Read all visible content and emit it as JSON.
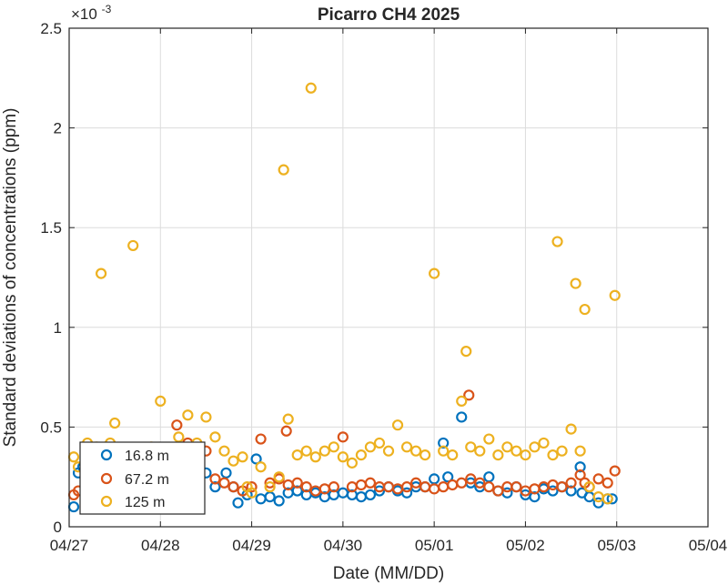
{
  "chart_data": {
    "type": "scatter",
    "title": "Picarro CH4 2025",
    "xlabel": "Date (MM/DD)",
    "ylabel": "Standard deviations of concentrations (ppm)",
    "y_exponent_label": "×10",
    "y_exponent_power": "-3",
    "x_ticks": [
      "04/27",
      "04/28",
      "04/29",
      "04/30",
      "05/01",
      "05/02",
      "05/03",
      "05/04"
    ],
    "x_tick_values": [
      0,
      1,
      2,
      3,
      4,
      5,
      6,
      7
    ],
    "x_value_unit": "days since 04/27",
    "y_ticks": [
      "0",
      "0.5",
      "1",
      "1.5",
      "2",
      "2.5"
    ],
    "y_tick_values": [
      0,
      0.5,
      1,
      1.5,
      2,
      2.5
    ],
    "xlim": [
      0,
      7
    ],
    "ylim": [
      0,
      2.5
    ],
    "grid": true,
    "legend_position": "bottom-left",
    "series": [
      {
        "name": "16.8 m",
        "color": "#0072BD",
        "x": [
          0.05,
          0.1,
          0.15,
          0.2,
          0.3,
          0.4,
          0.5,
          0.6,
          0.75,
          0.85,
          0.95,
          1.05,
          1.2,
          1.3,
          1.4,
          1.5,
          1.6,
          1.72,
          1.8,
          1.85,
          1.95,
          2.05,
          2.1,
          2.2,
          2.3,
          2.4,
          2.5,
          2.6,
          2.7,
          2.8,
          2.9,
          3.0,
          3.1,
          3.2,
          3.3,
          3.4,
          3.5,
          3.6,
          3.7,
          3.8,
          3.9,
          4.0,
          4.1,
          4.15,
          4.3,
          4.4,
          4.5,
          4.6,
          4.7,
          4.8,
          4.9,
          5.0,
          5.1,
          5.2,
          5.3,
          5.4,
          5.5,
          5.6,
          5.62,
          5.7,
          5.8,
          5.9,
          5.95
        ],
        "y": [
          0.1,
          0.27,
          0.3,
          0.28,
          0.25,
          0.22,
          0.24,
          0.3,
          0.26,
          0.28,
          0.3,
          0.25,
          0.22,
          0.24,
          0.3,
          0.27,
          0.2,
          0.27,
          0.2,
          0.12,
          0.16,
          0.34,
          0.14,
          0.15,
          0.13,
          0.17,
          0.18,
          0.16,
          0.17,
          0.15,
          0.16,
          0.17,
          0.16,
          0.15,
          0.16,
          0.18,
          0.2,
          0.18,
          0.17,
          0.2,
          0.2,
          0.24,
          0.42,
          0.25,
          0.55,
          0.22,
          0.2,
          0.25,
          0.18,
          0.17,
          0.2,
          0.16,
          0.15,
          0.19,
          0.18,
          0.2,
          0.18,
          0.3,
          0.17,
          0.15,
          0.12,
          0.14,
          0.14
        ]
      },
      {
        "name": "67.2 m",
        "color": "#D95319",
        "x": [
          0.05,
          0.1,
          0.2,
          0.3,
          0.4,
          0.5,
          0.6,
          0.7,
          0.8,
          0.9,
          1.0,
          1.1,
          1.18,
          1.3,
          1.4,
          1.5,
          1.6,
          1.7,
          1.8,
          1.9,
          2.0,
          2.1,
          2.2,
          2.3,
          2.38,
          2.4,
          2.5,
          2.6,
          2.7,
          2.8,
          2.9,
          3.0,
          3.1,
          3.2,
          3.3,
          3.4,
          3.5,
          3.6,
          3.7,
          3.8,
          3.9,
          4.0,
          4.1,
          4.2,
          4.3,
          4.38,
          4.4,
          4.5,
          4.6,
          4.7,
          4.8,
          4.9,
          5.0,
          5.1,
          5.2,
          5.3,
          5.4,
          5.5,
          5.6,
          5.65,
          5.7,
          5.8,
          5.9,
          5.98
        ],
        "y": [
          0.16,
          0.18,
          0.22,
          0.2,
          0.24,
          0.22,
          0.2,
          0.26,
          0.25,
          0.24,
          0.28,
          0.3,
          0.51,
          0.42,
          0.3,
          0.38,
          0.24,
          0.22,
          0.2,
          0.18,
          0.2,
          0.44,
          0.22,
          0.24,
          0.48,
          0.21,
          0.22,
          0.2,
          0.18,
          0.19,
          0.2,
          0.45,
          0.2,
          0.21,
          0.22,
          0.2,
          0.2,
          0.19,
          0.2,
          0.22,
          0.2,
          0.19,
          0.2,
          0.21,
          0.22,
          0.66,
          0.24,
          0.22,
          0.2,
          0.18,
          0.2,
          0.2,
          0.18,
          0.19,
          0.2,
          0.21,
          0.2,
          0.22,
          0.26,
          0.22,
          0.2,
          0.24,
          0.22,
          0.28
        ]
      },
      {
        "name": "125 m",
        "color": "#EDB120",
        "x": [
          0.05,
          0.1,
          0.2,
          0.3,
          0.35,
          0.45,
          0.5,
          0.6,
          0.7,
          0.8,
          0.9,
          1.0,
          1.1,
          1.2,
          1.3,
          1.4,
          1.5,
          1.6,
          1.7,
          1.8,
          1.9,
          1.95,
          2.0,
          2.1,
          2.2,
          2.3,
          2.35,
          2.4,
          2.5,
          2.6,
          2.65,
          2.7,
          2.8,
          2.9,
          3.0,
          3.1,
          3.2,
          3.3,
          3.4,
          3.5,
          3.6,
          3.7,
          3.8,
          3.9,
          4.0,
          4.1,
          4.2,
          4.3,
          4.35,
          4.4,
          4.5,
          4.6,
          4.7,
          4.8,
          4.9,
          5.0,
          5.1,
          5.2,
          5.3,
          5.35,
          5.4,
          5.5,
          5.55,
          5.6,
          5.65,
          5.7,
          5.8,
          5.9,
          5.98
        ],
        "y": [
          0.35,
          0.3,
          0.42,
          0.4,
          1.27,
          0.42,
          0.52,
          0.38,
          1.41,
          0.35,
          0.4,
          0.63,
          0.38,
          0.45,
          0.56,
          0.42,
          0.55,
          0.45,
          0.38,
          0.33,
          0.35,
          0.2,
          0.17,
          0.3,
          0.2,
          0.25,
          1.79,
          0.54,
          0.36,
          0.38,
          2.2,
          0.35,
          0.38,
          0.4,
          0.35,
          0.32,
          0.36,
          0.4,
          0.42,
          0.38,
          0.51,
          0.4,
          0.38,
          0.36,
          1.27,
          0.38,
          0.36,
          0.63,
          0.88,
          0.4,
          0.38,
          0.44,
          0.36,
          0.4,
          0.38,
          0.36,
          0.4,
          0.42,
          0.36,
          1.43,
          0.38,
          0.49,
          1.22,
          0.38,
          1.09,
          0.2,
          0.15,
          0.14,
          1.16
        ]
      }
    ]
  }
}
